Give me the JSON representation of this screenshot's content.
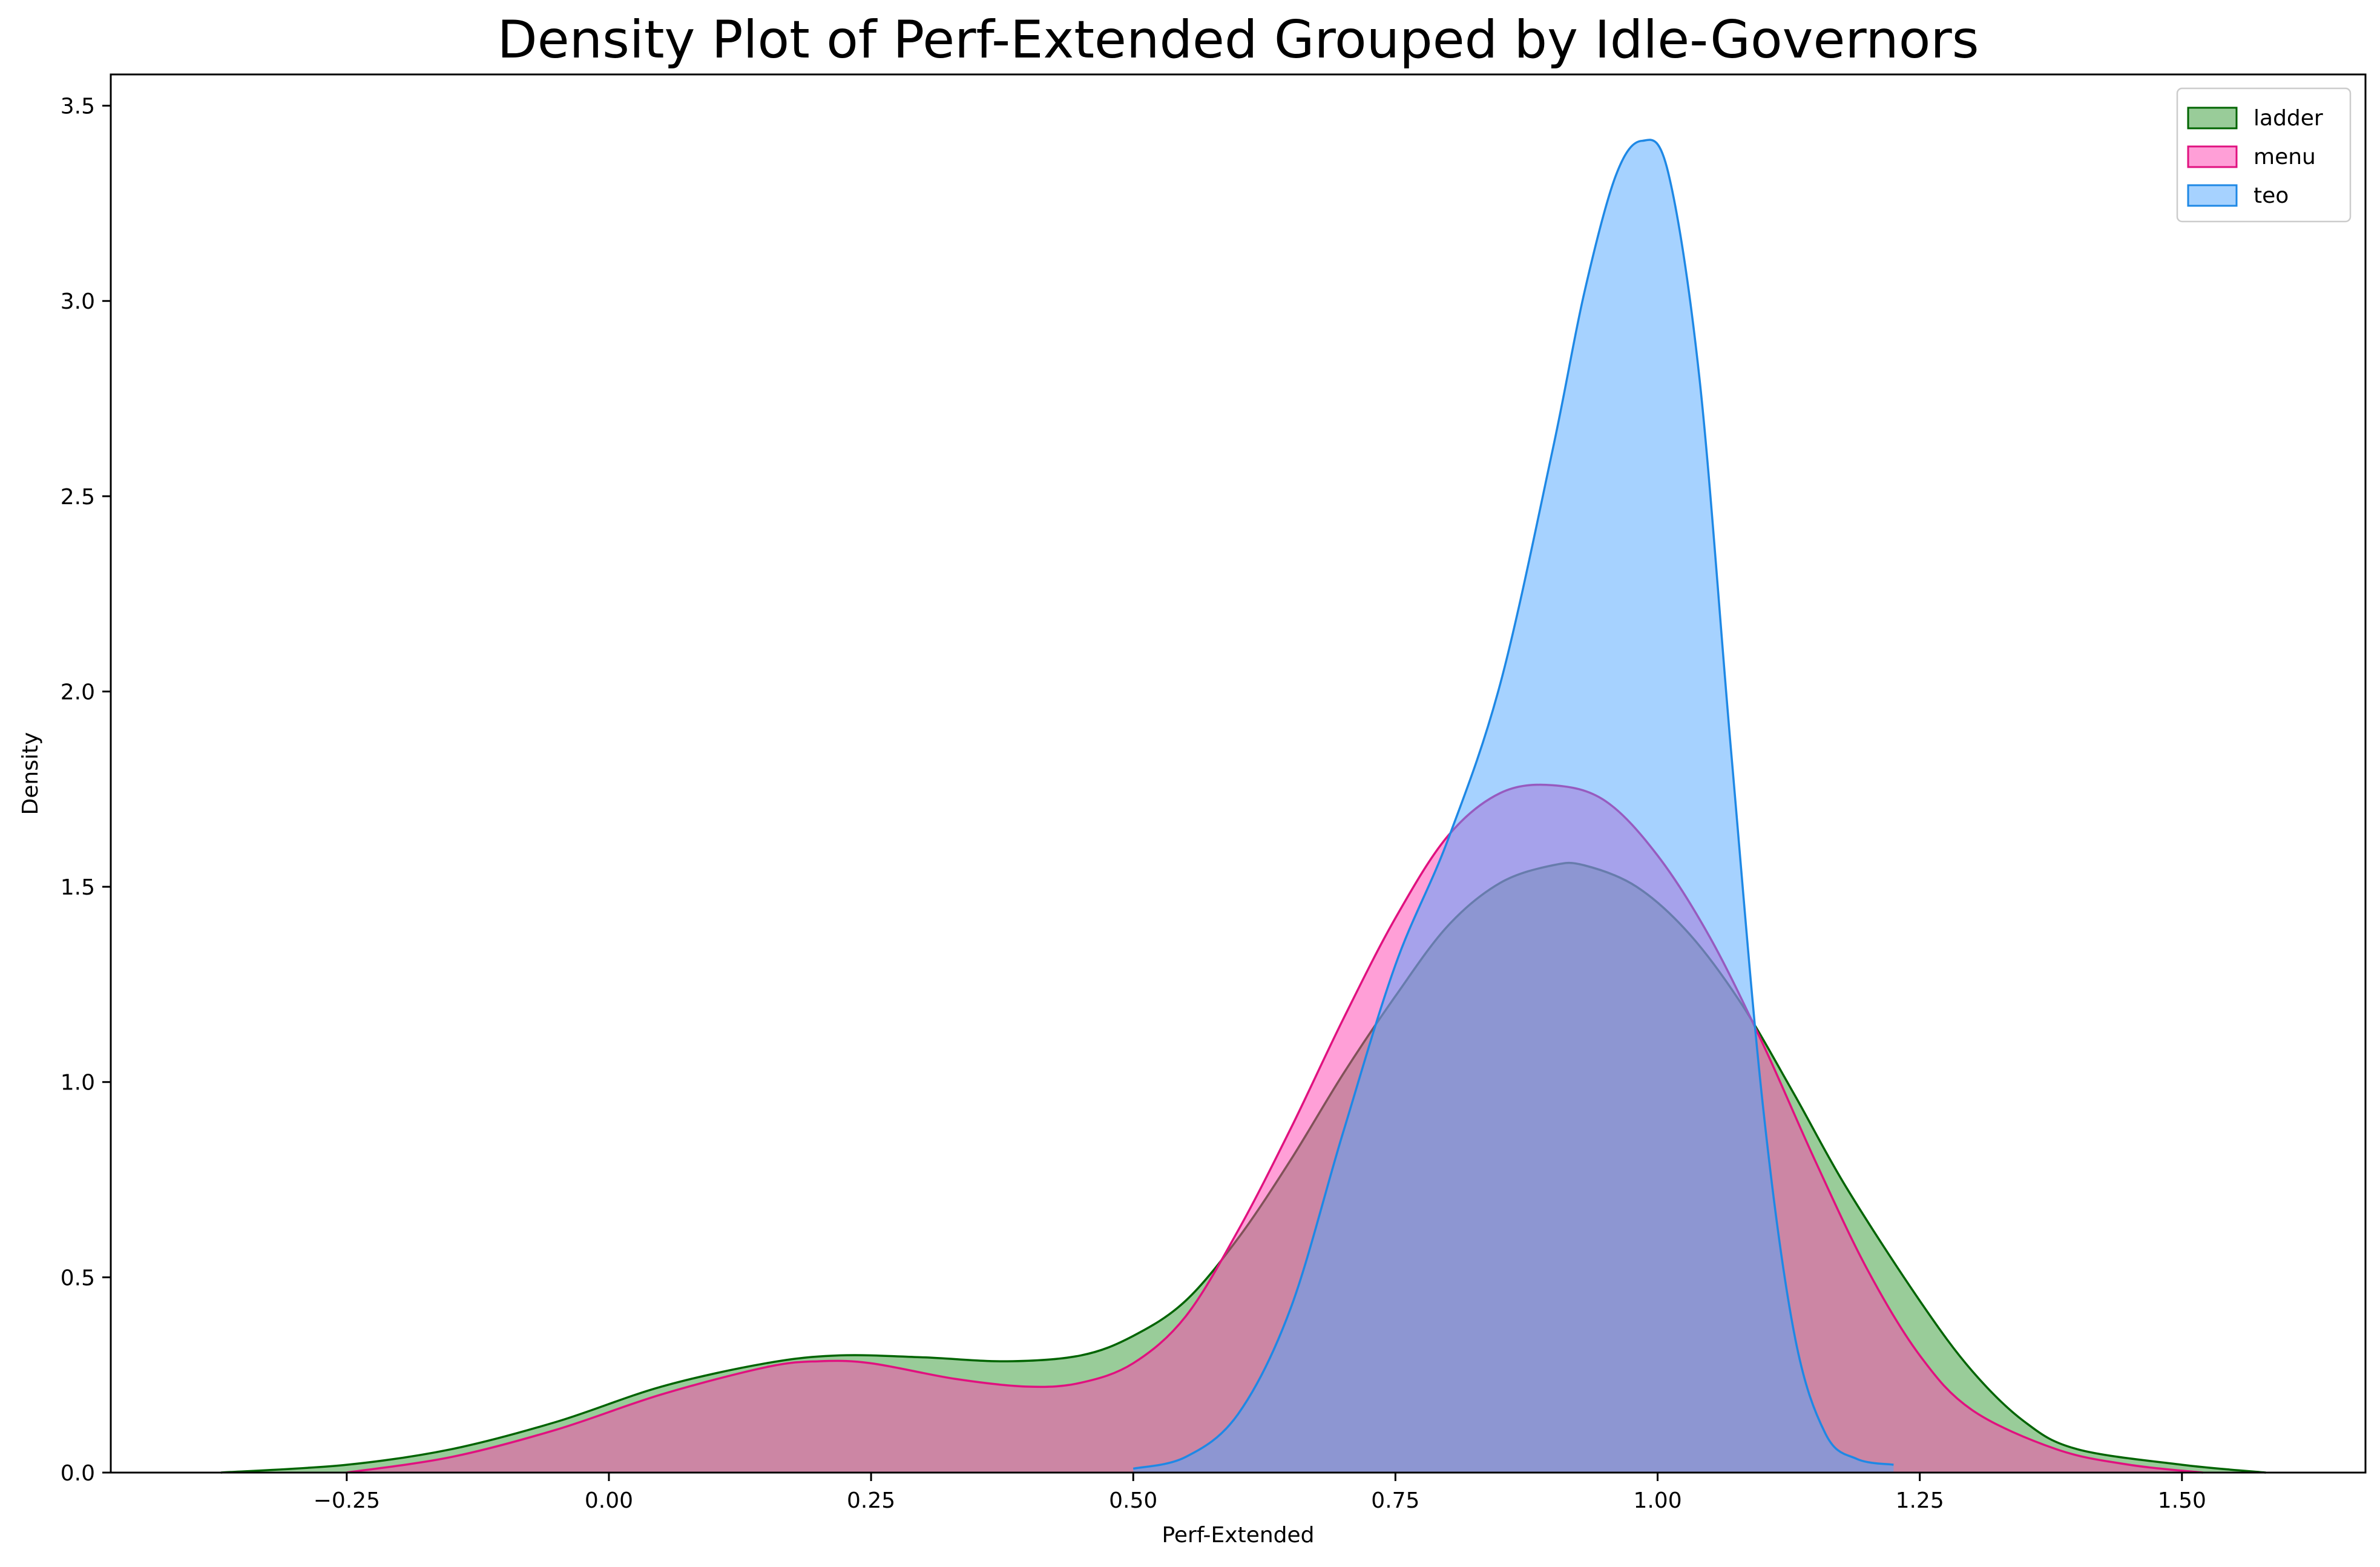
{
  "chart_data": {
    "type": "area",
    "title": "Density Plot of Perf-Extended Grouped by Idle-Governors",
    "xlabel": "Perf-Extended",
    "ylabel": "Density",
    "xlim": [
      -0.475,
      1.675
    ],
    "ylim": [
      0,
      3.58
    ],
    "x_ticks": [
      -0.25,
      0.0,
      0.25,
      0.5,
      0.75,
      1.0,
      1.25,
      1.5
    ],
    "x_tick_labels": [
      "−0.25",
      "0.00",
      "0.25",
      "0.50",
      "0.75",
      "1.00",
      "1.25",
      "1.50"
    ],
    "y_ticks": [
      0.0,
      0.5,
      1.0,
      1.5,
      2.0,
      2.5,
      3.0,
      3.5
    ],
    "y_tick_labels": [
      "0.0",
      "0.5",
      "1.0",
      "1.5",
      "2.0",
      "2.5",
      "3.0",
      "3.5"
    ],
    "legend_position": "top-right",
    "series": [
      {
        "name": "ladder",
        "fill": "#339933",
        "stroke": "#006400",
        "x": [
          -0.37,
          -0.25,
          -0.15,
          -0.05,
          0.05,
          0.15,
          0.22,
          0.3,
          0.38,
          0.45,
          0.5,
          0.55,
          0.6,
          0.65,
          0.7,
          0.75,
          0.8,
          0.85,
          0.9,
          0.93,
          0.98,
          1.03,
          1.08,
          1.13,
          1.18,
          1.25,
          1.3,
          1.35,
          1.4,
          1.5,
          1.58
        ],
        "y": [
          0.0,
          0.02,
          0.06,
          0.13,
          0.22,
          0.28,
          0.3,
          0.295,
          0.285,
          0.3,
          0.35,
          0.44,
          0.6,
          0.8,
          1.02,
          1.22,
          1.4,
          1.51,
          1.555,
          1.555,
          1.5,
          1.38,
          1.2,
          0.97,
          0.73,
          0.44,
          0.26,
          0.13,
          0.06,
          0.02,
          0.0
        ]
      },
      {
        "name": "menu",
        "fill": "#ff3fb0",
        "stroke": "#e0117f",
        "x": [
          -0.25,
          -0.15,
          -0.05,
          0.05,
          0.15,
          0.2,
          0.25,
          0.33,
          0.4,
          0.45,
          0.5,
          0.55,
          0.6,
          0.65,
          0.7,
          0.75,
          0.8,
          0.85,
          0.9,
          0.95,
          1.0,
          1.05,
          1.1,
          1.15,
          1.2,
          1.25,
          1.3,
          1.38,
          1.45,
          1.52
        ],
        "y": [
          0.0,
          0.04,
          0.11,
          0.2,
          0.27,
          0.285,
          0.28,
          0.24,
          0.22,
          0.23,
          0.28,
          0.4,
          0.62,
          0.88,
          1.16,
          1.42,
          1.63,
          1.74,
          1.76,
          1.72,
          1.58,
          1.37,
          1.1,
          0.8,
          0.52,
          0.3,
          0.16,
          0.06,
          0.02,
          0.0
        ]
      },
      {
        "name": "teo",
        "fill": "#4da6ff",
        "stroke": "#1e88e5",
        "x": [
          0.5,
          0.55,
          0.6,
          0.65,
          0.7,
          0.75,
          0.8,
          0.85,
          0.9,
          0.93,
          0.96,
          0.985,
          1.01,
          1.04,
          1.07,
          1.1,
          1.13,
          1.16,
          1.19,
          1.225
        ],
        "y": [
          0.01,
          0.04,
          0.15,
          0.42,
          0.87,
          1.3,
          1.62,
          2.02,
          2.62,
          3.02,
          3.32,
          3.41,
          3.33,
          2.8,
          1.85,
          0.95,
          0.36,
          0.1,
          0.035,
          0.02
        ]
      }
    ]
  }
}
